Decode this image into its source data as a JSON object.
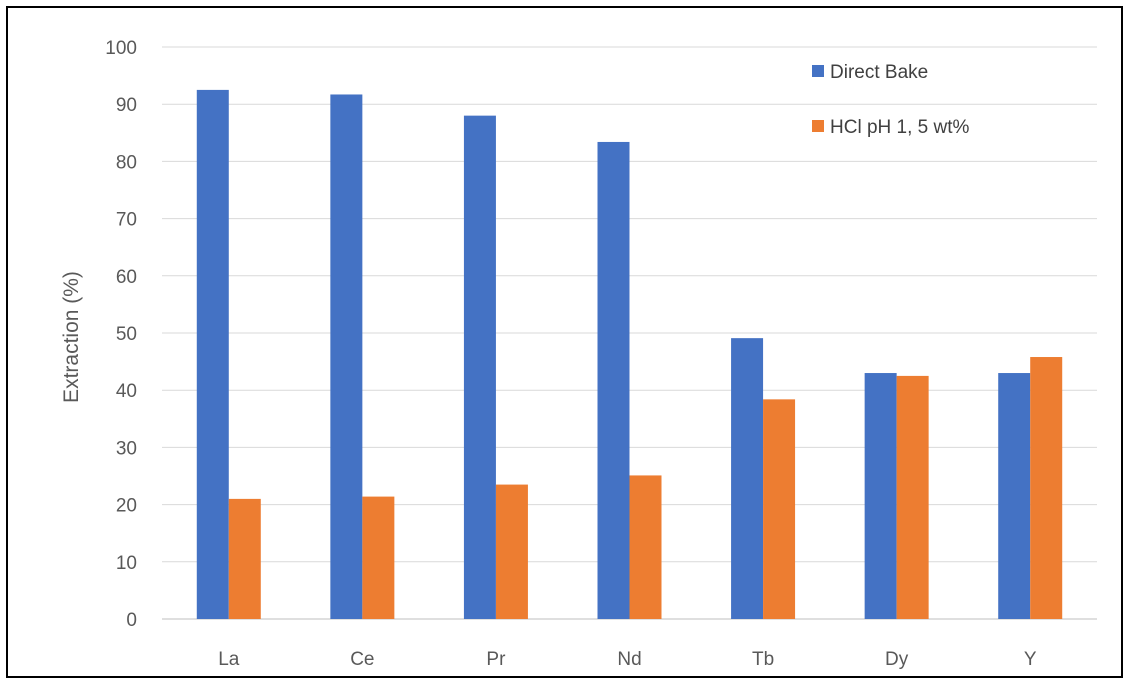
{
  "chart_data": {
    "type": "bar",
    "title": "",
    "xlabel": "",
    "ylabel": "Extraction (%)",
    "ylim": [
      0,
      100
    ],
    "yticks": [
      0,
      10,
      20,
      30,
      40,
      50,
      60,
      70,
      80,
      90,
      100
    ],
    "grid": true,
    "legend_position": "top-right",
    "categories": [
      "La",
      "Ce",
      "Pr",
      "Nd",
      "Tb",
      "Dy",
      "Y"
    ],
    "series": [
      {
        "name": "Direct Bake",
        "color": "#4472C4",
        "values": [
          92.5,
          91.7,
          88.0,
          83.4,
          49.1,
          43.0,
          43.0
        ]
      },
      {
        "name": "HCl pH 1, 5 wt%",
        "color": "#ED7D31",
        "values": [
          21.0,
          21.4,
          23.5,
          25.1,
          38.4,
          42.5,
          45.8
        ]
      }
    ]
  }
}
